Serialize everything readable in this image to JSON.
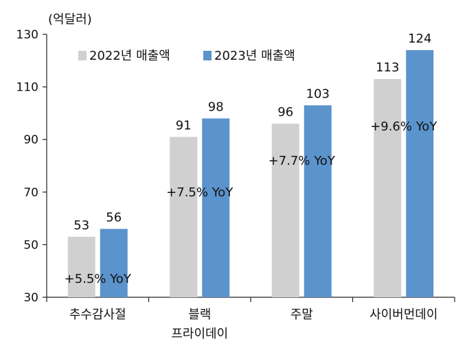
{
  "chart_data": {
    "type": "bar",
    "title": "",
    "ylabel": "(억달러)",
    "xlabel": "",
    "ylim": [
      30,
      130
    ],
    "yticks": [
      30,
      50,
      70,
      90,
      110,
      130
    ],
    "grid": false,
    "legend": "top-left",
    "categories": [
      [
        "추수감사절"
      ],
      [
        "블랙",
        "프라이데이"
      ],
      [
        "주말"
      ],
      [
        "사이버먼데이"
      ]
    ],
    "series": [
      {
        "name": "2022년 매출액",
        "color": "#d0d0d0",
        "values": [
          53,
          91,
          96,
          113
        ]
      },
      {
        "name": "2023년 매출액",
        "color": "#5b93cc",
        "values": [
          56,
          98,
          103,
          124
        ]
      }
    ],
    "annotations": [
      "+5.5% YoY",
      "+7.5% YoY",
      "+7.7% YoY",
      "+9.6% YoY"
    ]
  }
}
